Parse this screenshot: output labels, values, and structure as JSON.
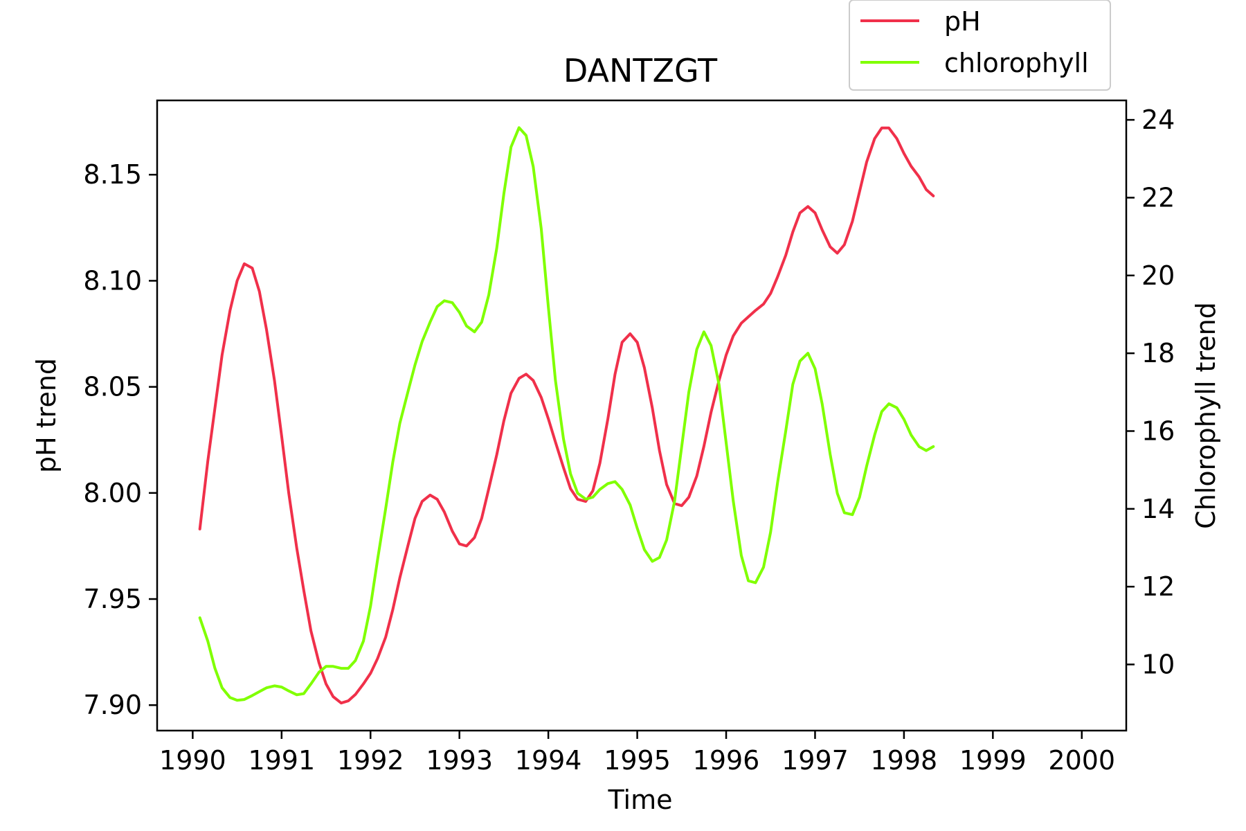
{
  "chart_data": {
    "type": "line",
    "title": "DANTZGT",
    "xlabel": "Time",
    "ylabel_left": "pH trend",
    "ylabel_right": "Chlorophyll trend",
    "xlim": [
      1989.6,
      2000.5
    ],
    "ylim_left": [
      7.888,
      8.185
    ],
    "ylim_right": [
      8.3,
      24.5
    ],
    "x_ticks": [
      1990,
      1991,
      1992,
      1993,
      1994,
      1995,
      1996,
      1997,
      1998,
      1999,
      2000
    ],
    "y_ticks_left": [
      7.9,
      7.95,
      8.0,
      8.05,
      8.1,
      8.15
    ],
    "y_ticks_left_labels": [
      "7.90",
      "7.95",
      "8.00",
      "8.05",
      "8.10",
      "8.15"
    ],
    "y_ticks_right": [
      10,
      12,
      14,
      16,
      18,
      20,
      22,
      24
    ],
    "grid": false,
    "legend_placement": "top-right, above plot",
    "series": [
      {
        "name": "pH",
        "axis": "left",
        "color": "#f0304a",
        "points": [
          [
            1990.08,
            7.983
          ],
          [
            1990.17,
            8.015
          ],
          [
            1990.25,
            8.04
          ],
          [
            1990.33,
            8.065
          ],
          [
            1990.42,
            8.086
          ],
          [
            1990.5,
            8.1
          ],
          [
            1990.58,
            8.108
          ],
          [
            1990.67,
            8.106
          ],
          [
            1990.75,
            8.095
          ],
          [
            1990.83,
            8.077
          ],
          [
            1990.92,
            8.053
          ],
          [
            1991.0,
            8.027
          ],
          [
            1991.08,
            8.0
          ],
          [
            1991.17,
            7.974
          ],
          [
            1991.25,
            7.954
          ],
          [
            1991.33,
            7.935
          ],
          [
            1991.42,
            7.92
          ],
          [
            1991.5,
            7.91
          ],
          [
            1991.58,
            7.904
          ],
          [
            1991.67,
            7.901
          ],
          [
            1991.75,
            7.902
          ],
          [
            1991.83,
            7.905
          ],
          [
            1991.92,
            7.91
          ],
          [
            1992.0,
            7.915
          ],
          [
            1992.08,
            7.922
          ],
          [
            1992.17,
            7.932
          ],
          [
            1992.25,
            7.945
          ],
          [
            1992.33,
            7.96
          ],
          [
            1992.42,
            7.975
          ],
          [
            1992.5,
            7.988
          ],
          [
            1992.58,
            7.996
          ],
          [
            1992.67,
            7.999
          ],
          [
            1992.75,
            7.997
          ],
          [
            1992.83,
            7.991
          ],
          [
            1992.92,
            7.982
          ],
          [
            1993.0,
            7.976
          ],
          [
            1993.08,
            7.975
          ],
          [
            1993.17,
            7.979
          ],
          [
            1993.25,
            7.988
          ],
          [
            1993.33,
            8.002
          ],
          [
            1993.42,
            8.018
          ],
          [
            1993.5,
            8.034
          ],
          [
            1993.58,
            8.047
          ],
          [
            1993.67,
            8.054
          ],
          [
            1993.75,
            8.056
          ],
          [
            1993.83,
            8.053
          ],
          [
            1993.92,
            8.045
          ],
          [
            1994.0,
            8.035
          ],
          [
            1994.08,
            8.024
          ],
          [
            1994.17,
            8.012
          ],
          [
            1994.25,
            8.002
          ],
          [
            1994.33,
            7.997
          ],
          [
            1994.42,
            7.996
          ],
          [
            1994.5,
            8.001
          ],
          [
            1994.58,
            8.014
          ],
          [
            1994.67,
            8.035
          ],
          [
            1994.75,
            8.056
          ],
          [
            1994.83,
            8.071
          ],
          [
            1994.92,
            8.075
          ],
          [
            1995.0,
            8.071
          ],
          [
            1995.08,
            8.059
          ],
          [
            1995.17,
            8.04
          ],
          [
            1995.25,
            8.02
          ],
          [
            1995.33,
            8.004
          ],
          [
            1995.42,
            7.995
          ],
          [
            1995.5,
            7.994
          ],
          [
            1995.58,
            7.998
          ],
          [
            1995.67,
            8.008
          ],
          [
            1995.75,
            8.022
          ],
          [
            1995.83,
            8.038
          ],
          [
            1995.92,
            8.053
          ],
          [
            1996.0,
            8.065
          ],
          [
            1996.08,
            8.074
          ],
          [
            1996.17,
            8.08
          ],
          [
            1996.25,
            8.083
          ],
          [
            1996.33,
            8.086
          ],
          [
            1996.42,
            8.089
          ],
          [
            1996.5,
            8.094
          ],
          [
            1996.58,
            8.102
          ],
          [
            1996.67,
            8.112
          ],
          [
            1996.75,
            8.123
          ],
          [
            1996.83,
            8.132
          ],
          [
            1996.92,
            8.135
          ],
          [
            1997.0,
            8.132
          ],
          [
            1997.08,
            8.124
          ],
          [
            1997.17,
            8.116
          ],
          [
            1997.25,
            8.113
          ],
          [
            1997.33,
            8.117
          ],
          [
            1997.42,
            8.128
          ],
          [
            1997.5,
            8.142
          ],
          [
            1997.58,
            8.156
          ],
          [
            1997.67,
            8.167
          ],
          [
            1997.75,
            8.172
          ],
          [
            1997.83,
            8.172
          ],
          [
            1997.92,
            8.167
          ],
          [
            1998.0,
            8.16
          ],
          [
            1998.08,
            8.154
          ],
          [
            1998.17,
            8.149
          ],
          [
            1998.25,
            8.143
          ],
          [
            1998.33,
            8.14
          ]
        ]
      },
      {
        "name": "chlorophyll",
        "axis": "right",
        "color": "#80ff00",
        "points": [
          [
            1990.08,
            11.2
          ],
          [
            1990.17,
            10.6
          ],
          [
            1990.25,
            9.9
          ],
          [
            1990.33,
            9.4
          ],
          [
            1990.42,
            9.15
          ],
          [
            1990.5,
            9.08
          ],
          [
            1990.58,
            9.1
          ],
          [
            1990.67,
            9.2
          ],
          [
            1990.75,
            9.3
          ],
          [
            1990.83,
            9.4
          ],
          [
            1990.92,
            9.45
          ],
          [
            1991.0,
            9.42
          ],
          [
            1991.08,
            9.32
          ],
          [
            1991.17,
            9.22
          ],
          [
            1991.25,
            9.25
          ],
          [
            1991.33,
            9.5
          ],
          [
            1991.42,
            9.8
          ],
          [
            1991.5,
            9.95
          ],
          [
            1991.58,
            9.95
          ],
          [
            1991.67,
            9.9
          ],
          [
            1991.75,
            9.9
          ],
          [
            1991.83,
            10.1
          ],
          [
            1991.92,
            10.6
          ],
          [
            1992.0,
            11.5
          ],
          [
            1992.08,
            12.7
          ],
          [
            1992.17,
            14.0
          ],
          [
            1992.25,
            15.2
          ],
          [
            1992.33,
            16.2
          ],
          [
            1992.42,
            17.0
          ],
          [
            1992.5,
            17.7
          ],
          [
            1992.58,
            18.3
          ],
          [
            1992.67,
            18.8
          ],
          [
            1992.75,
            19.2
          ],
          [
            1992.83,
            19.35
          ],
          [
            1992.92,
            19.3
          ],
          [
            1993.0,
            19.05
          ],
          [
            1993.08,
            18.7
          ],
          [
            1993.17,
            18.55
          ],
          [
            1993.25,
            18.8
          ],
          [
            1993.33,
            19.5
          ],
          [
            1993.42,
            20.7
          ],
          [
            1993.5,
            22.1
          ],
          [
            1993.58,
            23.3
          ],
          [
            1993.67,
            23.8
          ],
          [
            1993.75,
            23.6
          ],
          [
            1993.83,
            22.8
          ],
          [
            1993.92,
            21.2
          ],
          [
            1994.0,
            19.2
          ],
          [
            1994.08,
            17.3
          ],
          [
            1994.17,
            15.8
          ],
          [
            1994.25,
            14.9
          ],
          [
            1994.33,
            14.4
          ],
          [
            1994.42,
            14.25
          ],
          [
            1994.5,
            14.3
          ],
          [
            1994.58,
            14.5
          ],
          [
            1994.67,
            14.65
          ],
          [
            1994.75,
            14.7
          ],
          [
            1994.83,
            14.5
          ],
          [
            1994.92,
            14.1
          ],
          [
            1995.0,
            13.5
          ],
          [
            1995.08,
            12.95
          ],
          [
            1995.17,
            12.65
          ],
          [
            1995.25,
            12.75
          ],
          [
            1995.33,
            13.2
          ],
          [
            1995.42,
            14.2
          ],
          [
            1995.5,
            15.6
          ],
          [
            1995.58,
            17.0
          ],
          [
            1995.67,
            18.1
          ],
          [
            1995.75,
            18.55
          ],
          [
            1995.83,
            18.2
          ],
          [
            1995.92,
            17.2
          ],
          [
            1996.0,
            15.7
          ],
          [
            1996.08,
            14.2
          ],
          [
            1996.17,
            12.8
          ],
          [
            1996.25,
            12.15
          ],
          [
            1996.33,
            12.1
          ],
          [
            1996.42,
            12.5
          ],
          [
            1996.5,
            13.4
          ],
          [
            1996.58,
            14.7
          ],
          [
            1996.67,
            16.0
          ],
          [
            1996.75,
            17.2
          ],
          [
            1996.83,
            17.8
          ],
          [
            1996.92,
            18.0
          ],
          [
            1997.0,
            17.6
          ],
          [
            1997.08,
            16.7
          ],
          [
            1997.17,
            15.4
          ],
          [
            1997.25,
            14.4
          ],
          [
            1997.33,
            13.9
          ],
          [
            1997.42,
            13.85
          ],
          [
            1997.5,
            14.3
          ],
          [
            1997.58,
            15.1
          ],
          [
            1997.67,
            15.9
          ],
          [
            1997.75,
            16.5
          ],
          [
            1997.83,
            16.7
          ],
          [
            1997.92,
            16.6
          ],
          [
            1998.0,
            16.3
          ],
          [
            1998.08,
            15.9
          ],
          [
            1998.17,
            15.6
          ],
          [
            1998.25,
            15.5
          ],
          [
            1998.33,
            15.6
          ]
        ]
      }
    ]
  }
}
